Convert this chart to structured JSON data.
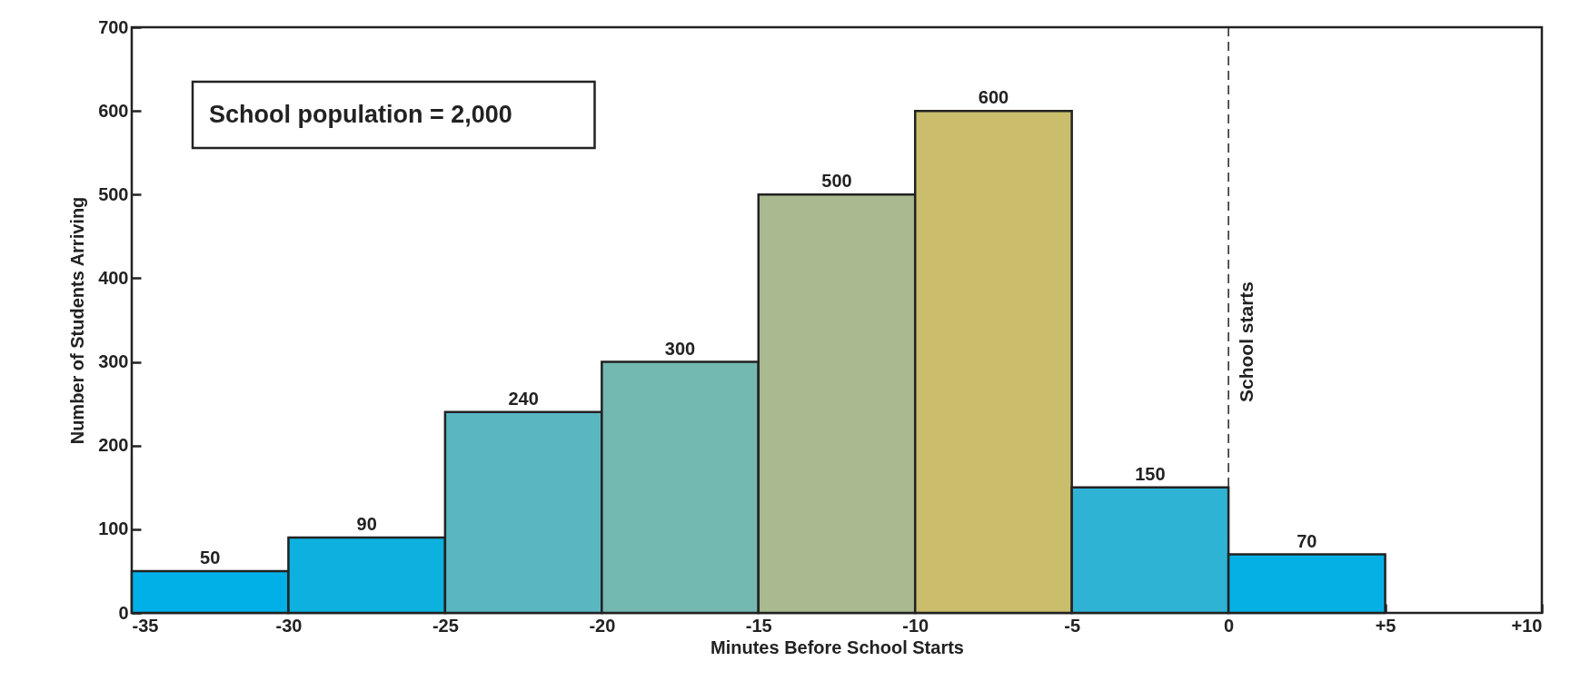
{
  "chart_data": {
    "type": "histogram",
    "xlabel": "Minutes Before School Starts",
    "ylabel": "Number of Students Arriving",
    "bins": [
      -35,
      -30,
      -25,
      -20,
      -15,
      -10,
      -5,
      0,
      5
    ],
    "values": [
      50,
      90,
      240,
      300,
      500,
      600,
      150,
      70
    ],
    "colors": [
      "#00b0e6",
      "#0cb1df",
      "#5ab7c2",
      "#74b9b1",
      "#a9ba90",
      "#cabd6c",
      "#2fb3d4",
      "#05b0e4"
    ],
    "xlim": [
      -35,
      10
    ],
    "xticks": [
      -35,
      -30,
      -25,
      -20,
      -15,
      -10,
      -5,
      0,
      {
        "value": 5,
        "label": "+5"
      },
      {
        "value": 10,
        "label": "+10"
      }
    ],
    "ylim": [
      0,
      700
    ],
    "yticks": [
      0,
      100,
      200,
      300,
      400,
      500,
      600,
      700
    ],
    "ref_lines": [
      {
        "axis": "x",
        "value": 0,
        "label": "School starts",
        "line_style": "dashed"
      }
    ],
    "annotations": [
      "School population = 2,000"
    ],
    "data_labels": true,
    "grid": false
  }
}
